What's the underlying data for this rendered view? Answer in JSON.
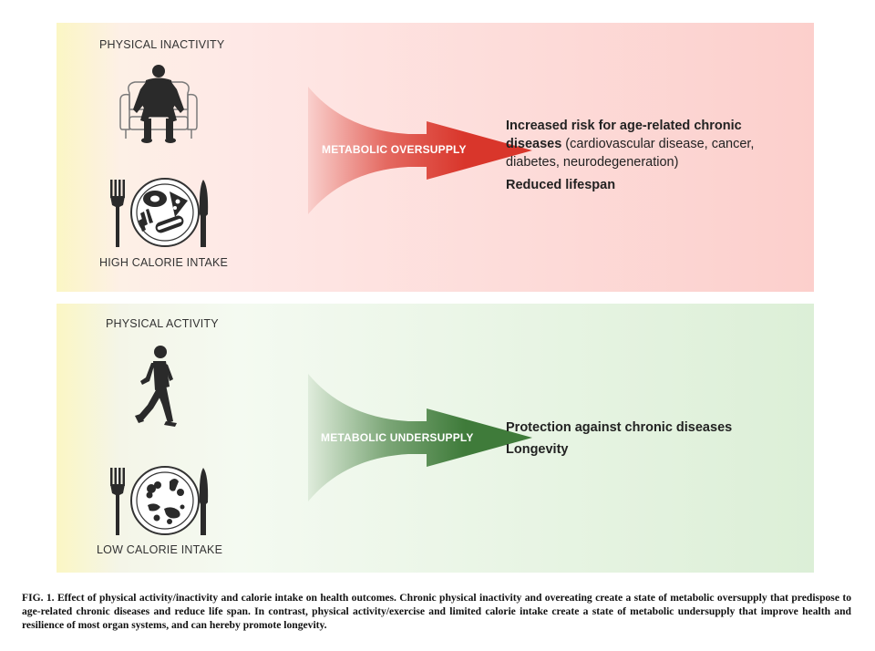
{
  "top_panel": {
    "activity_label": "PHYSICAL INACTIVITY",
    "intake_label": "HIGH CALORIE INTAKE",
    "arrow_label": "METABOLIC OVERSUPPLY",
    "outcome_lines": [
      {
        "bold": "Increased risk for age-related chronic",
        "normal": ""
      },
      {
        "bold": "diseases",
        "normal": " (cardiovascular disease, cancer,"
      },
      {
        "bold": "",
        "normal": "diabetes, neurodegeneration)"
      }
    ],
    "outcome_extra": "Reduced lifespan",
    "arrow_color": "#d9362b"
  },
  "bottom_panel": {
    "activity_label": "PHYSICAL ACTIVITY",
    "intake_label": "LOW CALORIE INTAKE",
    "arrow_label": "METABOLIC UNDERSUPPLY",
    "outcome_line1": "Protection against chronic diseases",
    "outcome_line2": "Longevity",
    "arrow_color": "#3f7b3a"
  },
  "caption": "FIG. 1. Effect of physical activity/inactivity and calorie intake on health outcomes. Chronic physical inactivity and overeating create a state of metabolic oversupply that predispose to age-related chronic diseases and reduce life span. In contrast, physical activity/exercise and limited calorie intake create a state of metabolic undersupply that improve health and resilience of most organ systems, and can hereby promote longevity.",
  "icons": [
    "armchair-person-icon",
    "fork-icon",
    "plate-high-calorie-icon",
    "knife-icon",
    "running-person-icon",
    "plate-low-calorie-icon"
  ]
}
